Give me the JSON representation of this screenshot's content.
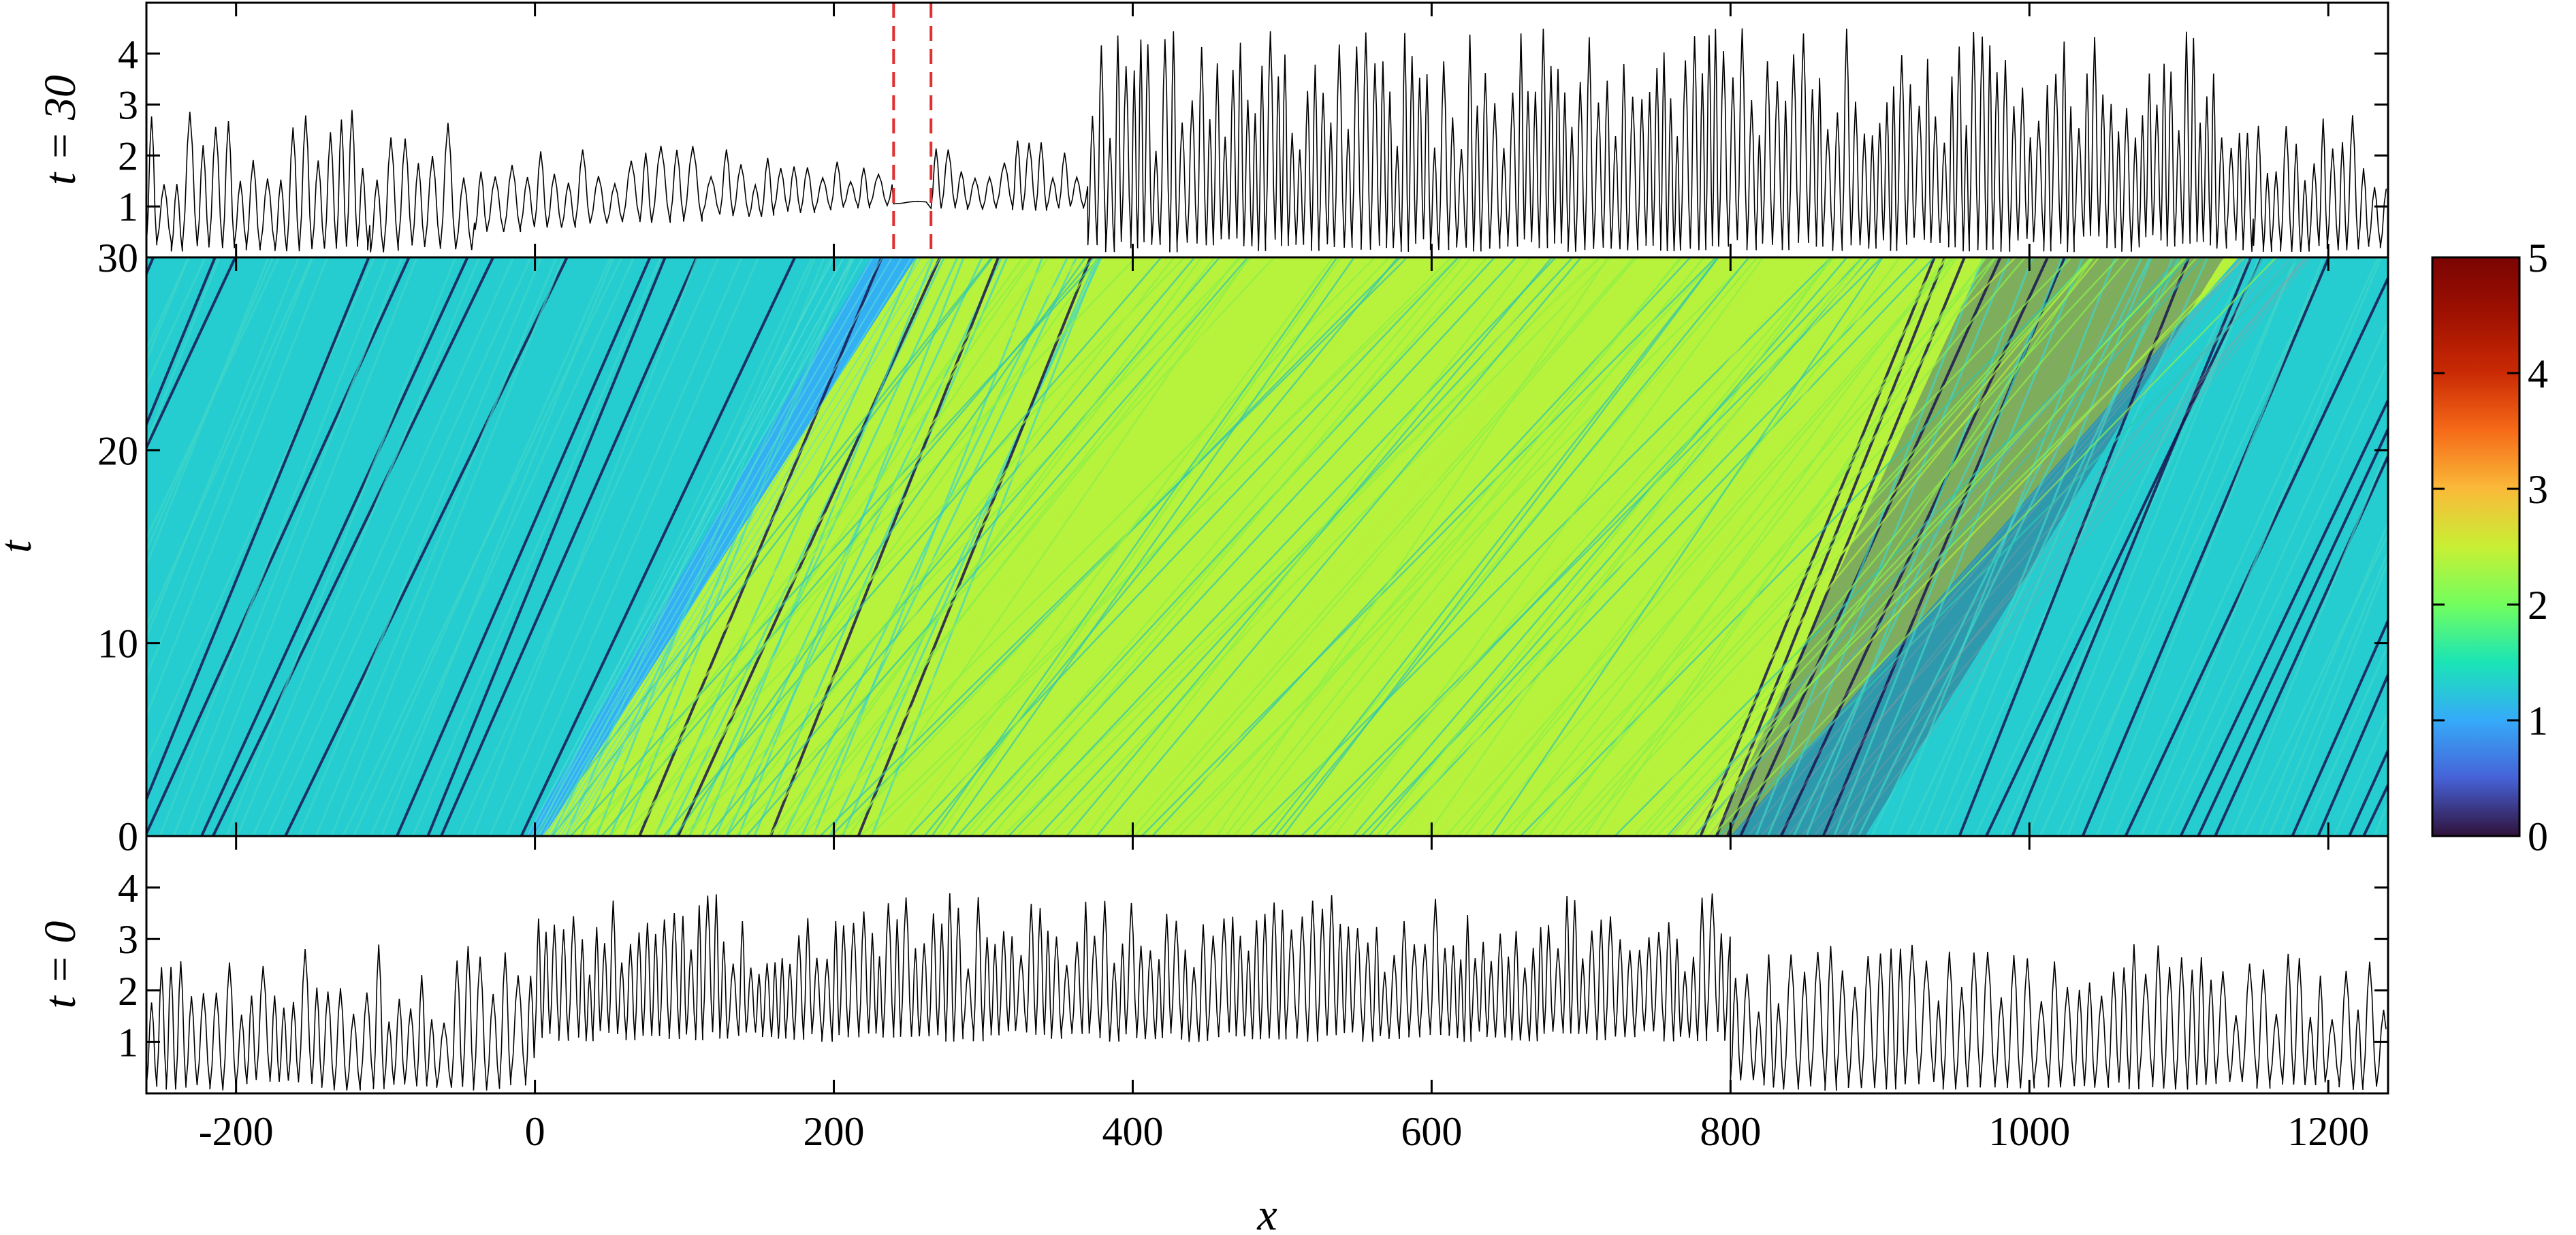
{
  "chart_data": [
    {
      "type": "line",
      "panel": "top",
      "ylabel": "t = 30",
      "xlim": [
        -260,
        1240
      ],
      "ylim": [
        0,
        5
      ],
      "yticks": [
        1,
        2,
        3,
        4
      ],
      "highlight_box": {
        "x": [
          240,
          265
        ],
        "style": "dashed",
        "color": "#e03030"
      },
      "envelope_segments": [
        {
          "x": [
            -260,
            -110
          ],
          "min": 0.1,
          "max": 2.9,
          "period": 8
        },
        {
          "x": [
            -110,
            -40
          ],
          "min": 0.1,
          "max": 2.7,
          "period": 9
        },
        {
          "x": [
            -40,
            240
          ],
          "min": 0.4,
          "max": 2.5,
          "period": 10,
          "min_end": 1.0,
          "max_end": 1.95
        },
        {
          "x": [
            240,
            265
          ],
          "min": 1.05,
          "max": 1.1,
          "period": 30
        },
        {
          "x": [
            265,
            370
          ],
          "min": 0.9,
          "max": 2.3,
          "period": 9
        },
        {
          "x": [
            370,
            1150
          ],
          "min": 0.1,
          "max": 4.5,
          "period": 5.5
        },
        {
          "x": [
            1150,
            1240
          ],
          "min": 0.1,
          "max": 2.8,
          "period": 7
        }
      ]
    },
    {
      "type": "heatmap",
      "panel": "middle",
      "xlabel": "",
      "ylabel": "t",
      "xlim": [
        -260,
        1240
      ],
      "ylim": [
        0,
        30
      ],
      "yticks": [
        0,
        10,
        20,
        30
      ],
      "colorbar": {
        "range": [
          0,
          5
        ],
        "ticks": [
          0,
          1,
          2,
          3,
          4,
          5
        ],
        "colormap": "turbo"
      },
      "regions": [
        {
          "name": "background",
          "x_at_t0": [
            -260,
            0
          ],
          "value": 1.3
        },
        {
          "name": "plateau",
          "boundary_left_t0": 0,
          "boundary_left_t30": 230,
          "value": 1.05
        },
        {
          "name": "high-amplitude wave train",
          "boundary_left_t0": 0,
          "boundary_right_t0": 800,
          "boundary_right_t30": 1140,
          "value": 2.4
        },
        {
          "name": "interaction zone",
          "x_at_t0": [
            790,
            830
          ],
          "x_at_t30": [
            1050,
            1110
          ],
          "value": 1.8
        },
        {
          "name": "background",
          "x_at_t0": [
            800,
            1240
          ],
          "value": 1.3
        }
      ]
    },
    {
      "type": "line",
      "panel": "bottom",
      "ylabel": "t = 0",
      "xlabel": "x",
      "xlim": [
        -260,
        1240
      ],
      "ylim": [
        0,
        5
      ],
      "xticks": [
        -200,
        0,
        200,
        400,
        600,
        800,
        1000,
        1200
      ],
      "yticks": [
        1,
        2,
        3,
        4
      ],
      "envelope_segments": [
        {
          "x": [
            -260,
            0
          ],
          "min": 0.05,
          "max": 2.9,
          "period": 8
        },
        {
          "x": [
            0,
            800
          ],
          "min": 1.0,
          "max": 3.9,
          "period": 6
        },
        {
          "x": [
            800,
            1240
          ],
          "min": 0.05,
          "max": 2.9,
          "period": 8
        }
      ]
    }
  ]
}
